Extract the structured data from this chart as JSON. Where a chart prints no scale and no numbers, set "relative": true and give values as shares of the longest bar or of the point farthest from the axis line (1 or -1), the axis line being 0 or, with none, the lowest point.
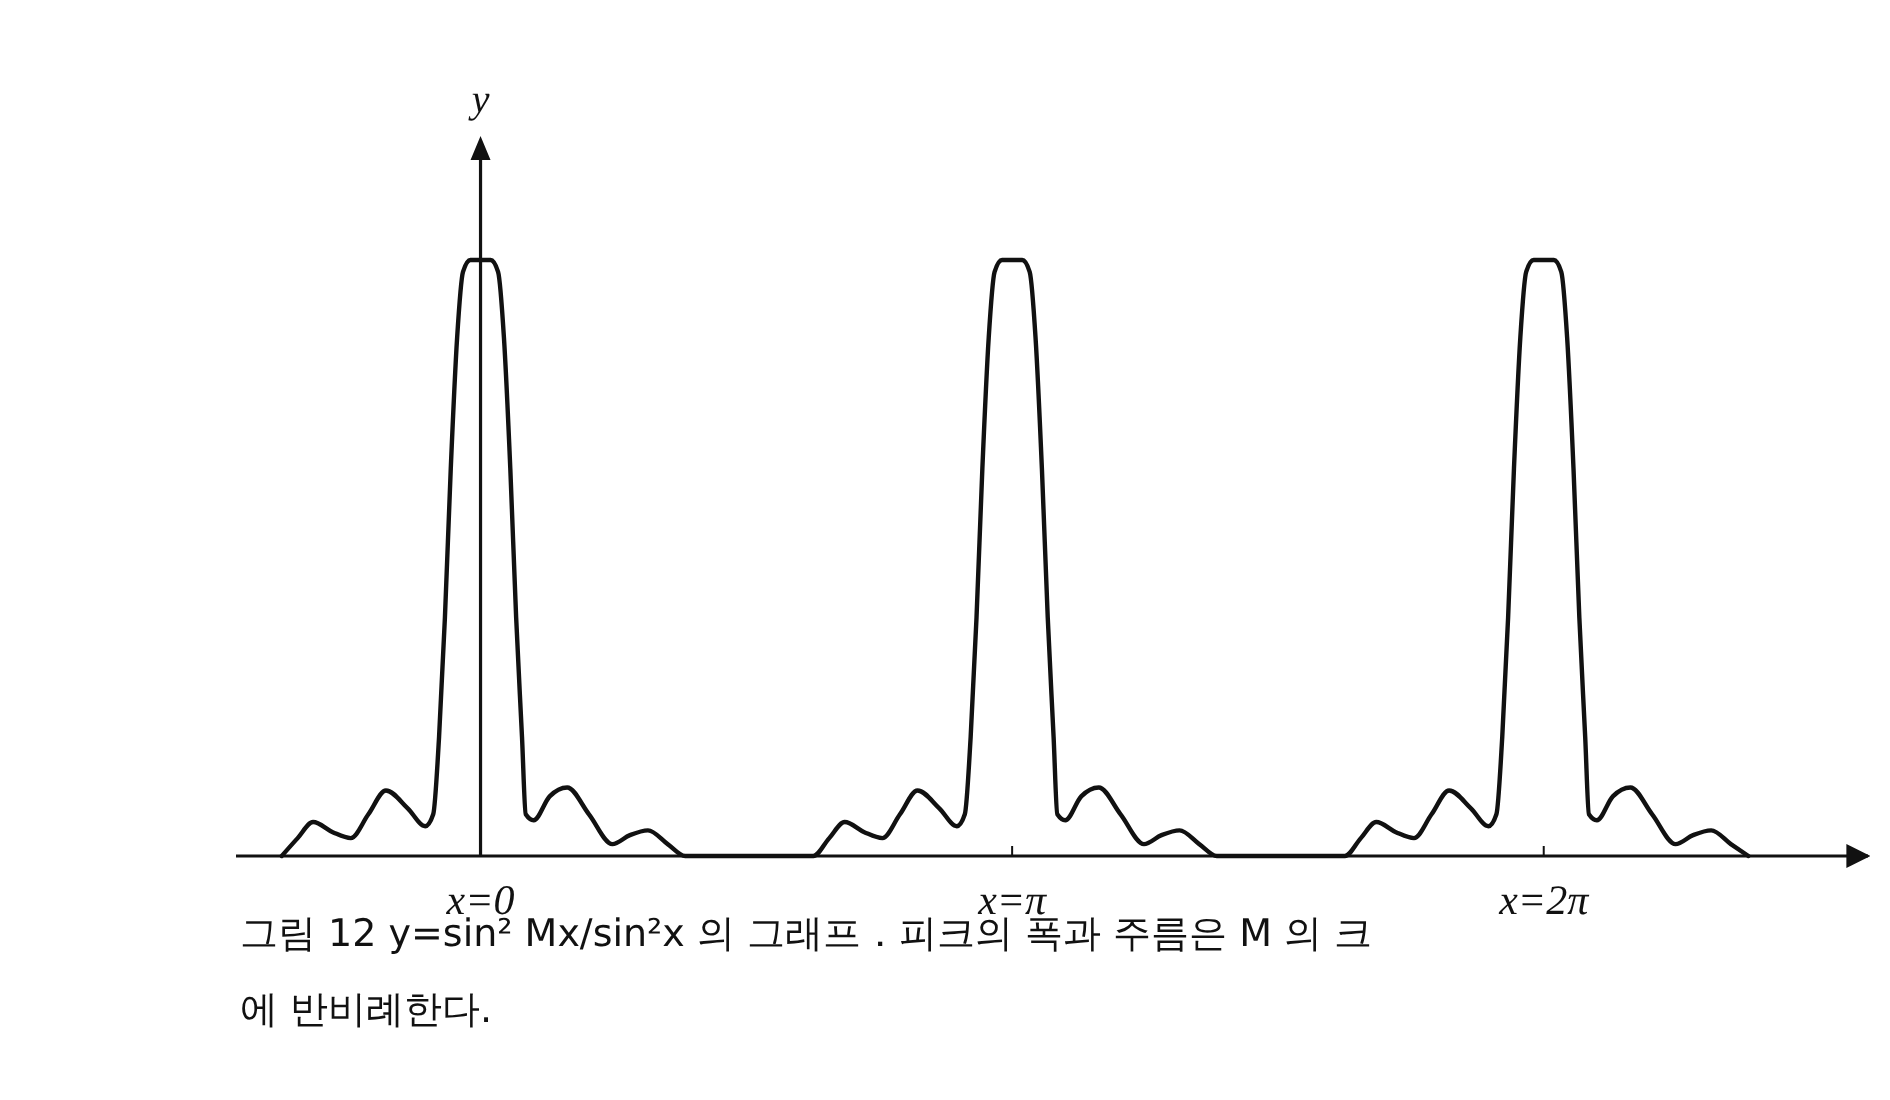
{
  "chart_data": {
    "type": "line",
    "relative": true,
    "ylabel": "y",
    "annotations": [
      "그림 12  y=sin² Mx/sin²x 의 그래프．피크의 폭과 주름은 M 의 크",
      "에 반비례한다."
    ],
    "xlim": [
      -0.46,
      2.61
    ],
    "xticks": [
      {
        "value": 0,
        "label": "x=0"
      },
      {
        "value": 1,
        "label": "x=π"
      },
      {
        "value": 2,
        "label": "x=2π"
      }
    ],
    "grid": false,
    "marker": "none",
    "line_style": "solid",
    "series": [
      {
        "color": "#111111",
        "x": [
          -0.374,
          -0.344,
          -0.315,
          -0.278,
          -0.244,
          -0.211,
          -0.178,
          -0.137,
          -0.104,
          -0.089,
          -0.078,
          -0.067,
          -0.056,
          -0.044,
          -0.033,
          -0.019,
          0,
          0.019,
          0.033,
          0.044,
          0.056,
          0.067,
          0.078,
          0.085,
          0.1,
          0.13,
          0.163,
          0.204,
          0.248,
          0.281,
          0.315,
          0.352,
          0.385,
          0.626,
          0.656,
          0.685,
          0.722,
          0.756,
          0.789,
          0.822,
          0.863,
          0.896,
          0.911,
          0.922,
          0.933,
          0.944,
          0.956,
          0.967,
          0.981,
          1,
          1.019,
          1.033,
          1.044,
          1.056,
          1.067,
          1.078,
          1.085,
          1.1,
          1.13,
          1.163,
          1.204,
          1.248,
          1.281,
          1.315,
          1.352,
          1.385,
          1.626,
          1.656,
          1.685,
          1.722,
          1.756,
          1.789,
          1.822,
          1.863,
          1.896,
          1.911,
          1.922,
          1.933,
          1.944,
          1.956,
          1.967,
          1.981,
          2,
          2.019,
          2.033,
          2.044,
          2.056,
          2.067,
          2.078,
          2.085,
          2.1,
          2.13,
          2.163,
          2.204,
          2.248,
          2.281,
          2.315,
          2.352,
          2.385
        ],
        "values": [
          0,
          0.03,
          0.057,
          0.04,
          0.03,
          0.07,
          0.11,
          0.08,
          0.05,
          0.07,
          0.2,
          0.4,
          0.65,
          0.87,
          0.98,
          1,
          1,
          1,
          0.98,
          0.87,
          0.65,
          0.4,
          0.2,
          0.07,
          0.06,
          0.1,
          0.115,
          0.07,
          0.02,
          0.035,
          0.043,
          0.02,
          0,
          0,
          0.03,
          0.057,
          0.04,
          0.03,
          0.07,
          0.11,
          0.08,
          0.05,
          0.07,
          0.2,
          0.4,
          0.65,
          0.87,
          0.98,
          1,
          1,
          1,
          0.98,
          0.87,
          0.65,
          0.4,
          0.2,
          0.07,
          0.06,
          0.1,
          0.115,
          0.07,
          0.02,
          0.035,
          0.043,
          0.02,
          0,
          0,
          0.03,
          0.057,
          0.04,
          0.03,
          0.07,
          0.11,
          0.08,
          0.05,
          0.07,
          0.2,
          0.4,
          0.65,
          0.87,
          0.98,
          1,
          1,
          1,
          0.98,
          0.87,
          0.65,
          0.4,
          0.2,
          0.07,
          0.06,
          0.1,
          0.115,
          0.07,
          0.02,
          0.035,
          0.043,
          0.02,
          0
        ]
      }
    ]
  }
}
